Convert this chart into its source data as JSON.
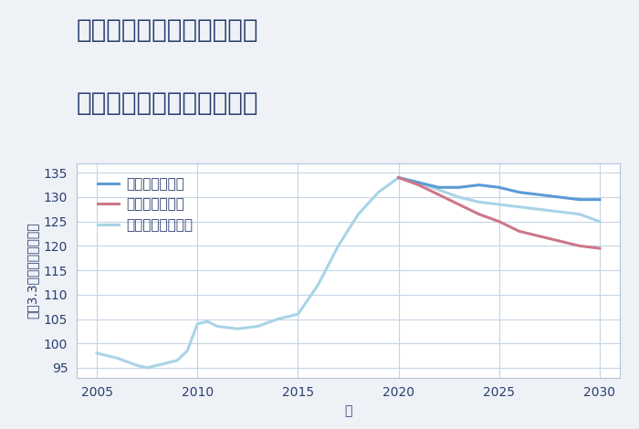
{
  "title_line1": "兵庫県姫路市白浜町寺家の",
  "title_line2": "中古マンションの価格推移",
  "xlabel": "年",
  "ylabel": "坪（3.3㎡）単価（万円）",
  "background_color": "#eef2f7",
  "plot_bg_color": "#ffffff",
  "grid_color": "#c5d5e5",
  "xlim": [
    2004,
    2031
  ],
  "ylim": [
    93,
    137
  ],
  "xticks": [
    2005,
    2010,
    2015,
    2020,
    2025,
    2030
  ],
  "yticks": [
    95,
    100,
    105,
    110,
    115,
    120,
    125,
    130,
    135
  ],
  "historical": {
    "years": [
      2005,
      2006,
      2007,
      2007.5,
      2008,
      2009,
      2009.5,
      2010,
      2010.5,
      2011,
      2012,
      2013,
      2014,
      2015,
      2016,
      2017,
      2018,
      2019,
      2020
    ],
    "values": [
      98.0,
      97.0,
      95.5,
      95.0,
      95.5,
      96.5,
      98.5,
      104.0,
      104.5,
      103.5,
      103.0,
      103.5,
      105.0,
      106.0,
      112.0,
      120.0,
      126.5,
      131.0,
      134.0
    ]
  },
  "good": {
    "years": [
      2020,
      2021,
      2022,
      2023,
      2024,
      2025,
      2026,
      2027,
      2028,
      2029,
      2030
    ],
    "values": [
      134.0,
      133.0,
      132.0,
      132.0,
      132.5,
      132.0,
      131.0,
      130.5,
      130.0,
      129.5,
      129.5
    ],
    "color": "#5b9bd5",
    "label": "グッドシナリオ",
    "linewidth": 2.2,
    "zorder": 4
  },
  "bad": {
    "years": [
      2020,
      2021,
      2022,
      2023,
      2024,
      2025,
      2026,
      2027,
      2028,
      2029,
      2030
    ],
    "values": [
      134.0,
      132.5,
      130.5,
      128.5,
      126.5,
      125.0,
      123.0,
      122.0,
      121.0,
      120.0,
      119.5
    ],
    "color": "#cc7788",
    "label": "バッドシナリオ",
    "linewidth": 2.2,
    "zorder": 5
  },
  "normal": {
    "years": [
      2020,
      2021,
      2022,
      2023,
      2024,
      2025,
      2026,
      2027,
      2028,
      2029,
      2030
    ],
    "values": [
      134.0,
      133.0,
      131.5,
      130.0,
      129.0,
      128.5,
      128.0,
      127.5,
      127.0,
      126.5,
      125.0
    ],
    "color": "#a8d4e6",
    "label": "ノーマルシナリオ",
    "linewidth": 2.2,
    "zorder": 3
  },
  "historical_color": "#a8d4e6",
  "title_color": "#2c3e6e",
  "axis_label_color": "#2c3e6e",
  "tick_color": "#2c3e6e",
  "title_fontsize": 20,
  "label_fontsize": 10,
  "tick_fontsize": 10,
  "legend_fontsize": 11
}
